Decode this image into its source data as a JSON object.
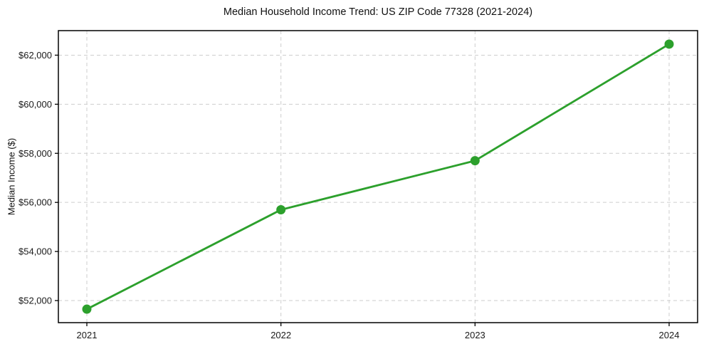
{
  "figure": {
    "background": "#ffffff"
  },
  "chart_data": {
    "type": "line",
    "title": "Median Household Income Trend: US ZIP Code 77328 (2021-2024)",
    "xlabel": "",
    "ylabel": "Median Income ($)",
    "categories": [
      "2021",
      "2022",
      "2023",
      "2024"
    ],
    "series": [
      {
        "name": "Median Household Income",
        "values": [
          51650,
          55700,
          57700,
          62450
        ]
      }
    ],
    "yticks": [
      52000,
      54000,
      56000,
      58000,
      60000,
      62000
    ],
    "ytick_labels": [
      "$52,000",
      "$54,000",
      "$56,000",
      "$58,000",
      "$60,000",
      "$62,000"
    ],
    "ylim": [
      51100,
      63000
    ],
    "grid": true,
    "grid_style": "dashed",
    "grid_color": "#cdcdcd",
    "line_color": "#2ca02c",
    "marker": "circle",
    "legend_position": "none",
    "spine_color": "#000000"
  }
}
